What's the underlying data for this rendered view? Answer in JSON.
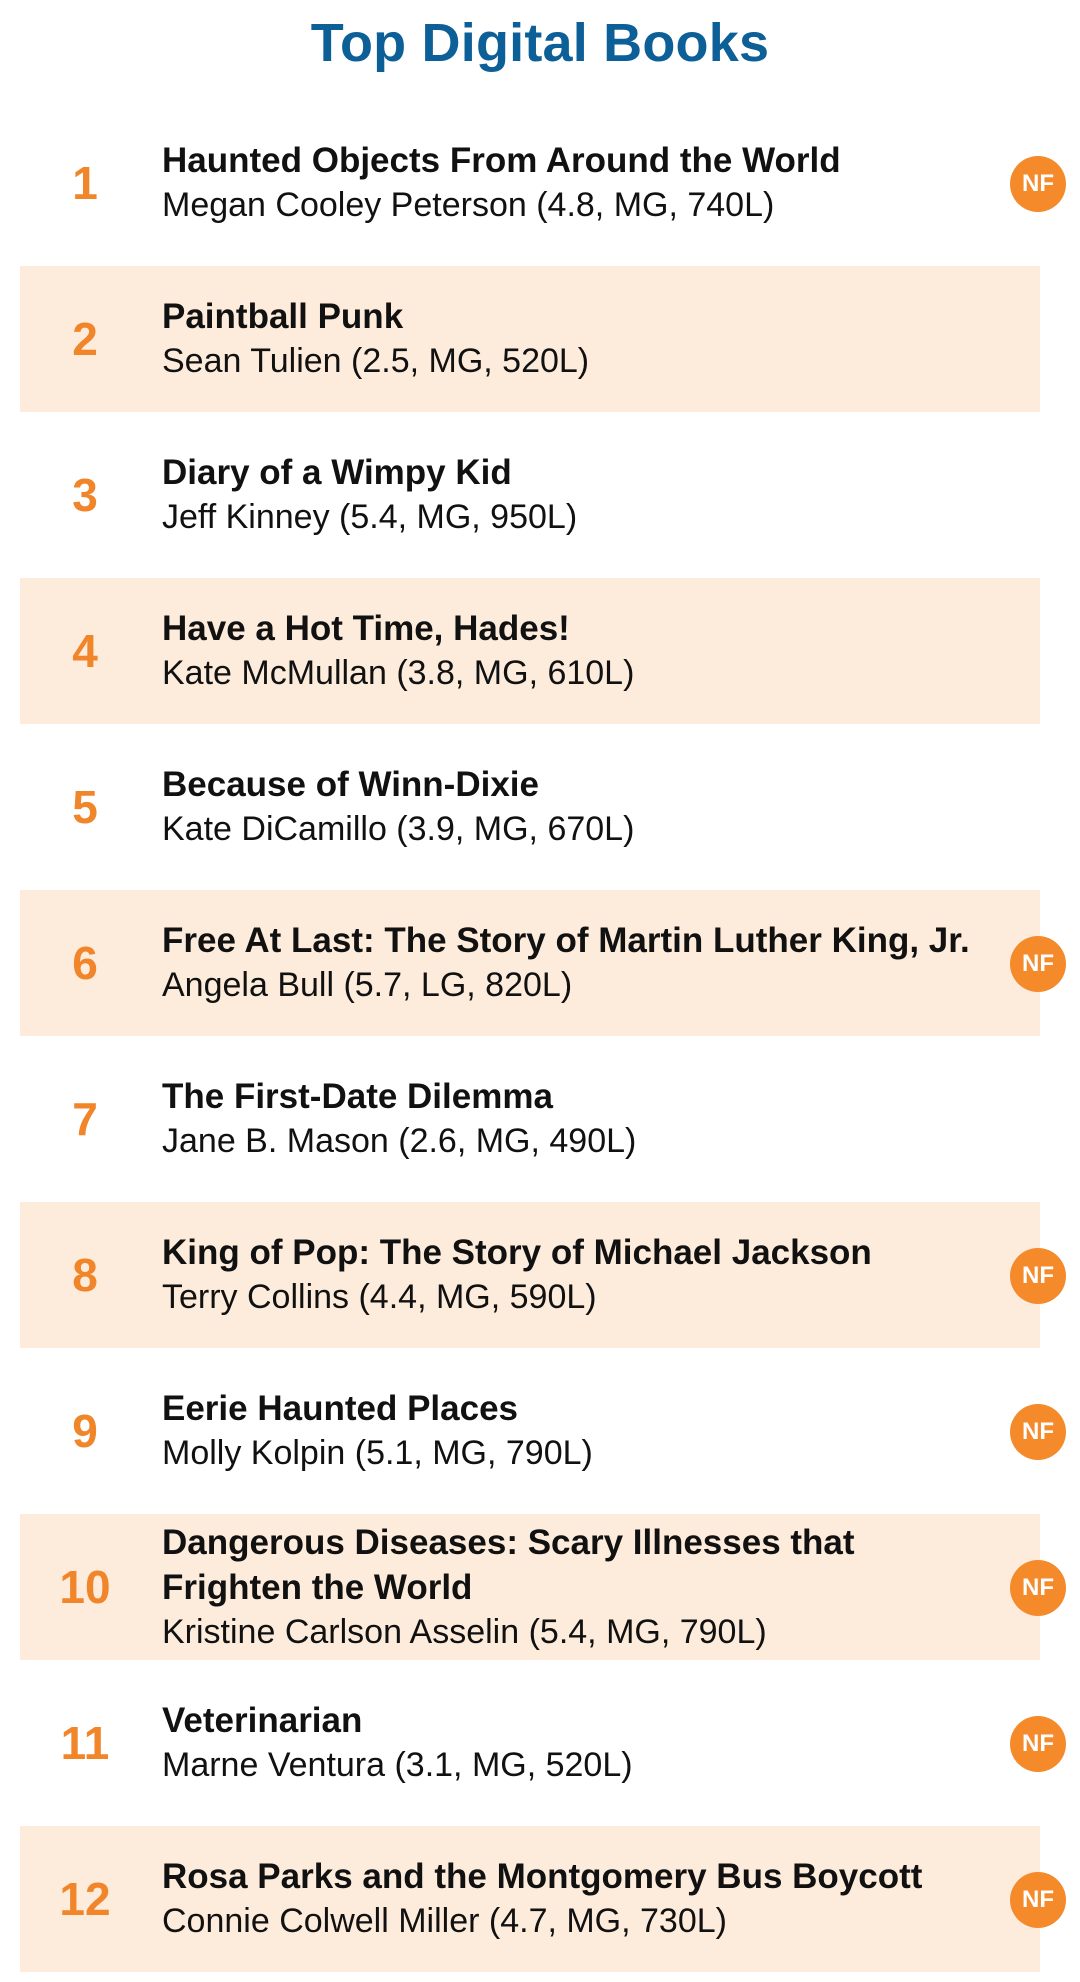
{
  "header": {
    "title": "Top Digital Books"
  },
  "badge_label": "NF",
  "colors": {
    "title": "#0d5f97",
    "rank": "#f0852a",
    "shaded_row": "#fdecdb",
    "badge": "#f58a2b"
  },
  "books": [
    {
      "rank": "1",
      "title": "Haunted Objects From Around the World",
      "author_line": "Megan Cooley Peterson (4.8, MG, 740L)",
      "nonfiction": true
    },
    {
      "rank": "2",
      "title": "Paintball Punk",
      "author_line": "Sean Tulien (2.5, MG, 520L)",
      "nonfiction": false
    },
    {
      "rank": "3",
      "title": "Diary of a Wimpy Kid",
      "author_line": "Jeff Kinney (5.4, MG, 950L)",
      "nonfiction": false
    },
    {
      "rank": "4",
      "title": "Have a Hot Time, Hades!",
      "author_line": "Kate McMullan (3.8, MG, 610L)",
      "nonfiction": false
    },
    {
      "rank": "5",
      "title": "Because of Winn-Dixie",
      "author_line": "Kate DiCamillo (3.9, MG, 670L)",
      "nonfiction": false
    },
    {
      "rank": "6",
      "title": "Free At Last: The Story of Martin Luther King, Jr.",
      "author_line": "Angela Bull (5.7, LG, 820L)",
      "nonfiction": true
    },
    {
      "rank": "7",
      "title": "The First-Date Dilemma",
      "author_line": "Jane B. Mason (2.6, MG, 490L)",
      "nonfiction": false
    },
    {
      "rank": "8",
      "title": "King of Pop: The Story of Michael Jackson",
      "author_line": "Terry Collins (4.4, MG, 590L)",
      "nonfiction": true
    },
    {
      "rank": "9",
      "title": "Eerie Haunted Places",
      "author_line": "Molly Kolpin (5.1, MG, 790L)",
      "nonfiction": true
    },
    {
      "rank": "10",
      "title": "Dangerous Diseases: Scary Illnesses that Frighten the World",
      "author_line": "Kristine Carlson Asselin (5.4, MG, 790L)",
      "nonfiction": true
    },
    {
      "rank": "11",
      "title": "Veterinarian",
      "author_line": "Marne Ventura (3.1, MG, 520L)",
      "nonfiction": true
    },
    {
      "rank": "12",
      "title": "Rosa Parks and the Montgomery Bus Boycott",
      "author_line": "Connie Colwell Miller (4.7, MG, 730L)",
      "nonfiction": true
    }
  ]
}
